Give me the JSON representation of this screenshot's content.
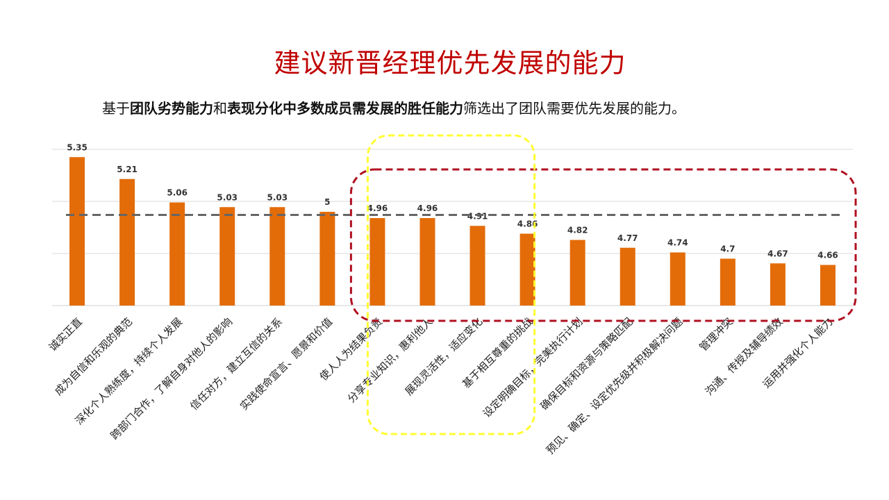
{
  "title": "建议新晋经理优先发展的能力",
  "subtitle": {
    "p1": "基于",
    "p2": "团队劣势能力",
    "p3": "和",
    "p4": "表现分化中多数成员需发展的胜任能力",
    "p5": "筛选出了团队需要优先发展的能力。"
  },
  "colors": {
    "title": "#c00000",
    "bar": "#e36c09",
    "avg_line": "#666666",
    "yellow_box": "#ffff33",
    "red_box": "#b01020"
  },
  "chart_data": {
    "type": "bar",
    "categories": [
      "诚实正直",
      "成为自信和乐观的典范",
      "深化个人熟练度，持续个人发展",
      "跨部门合作，了解自身对他人的影响",
      "信任对方，建立互信的关系",
      "实践使命宣言、愿景和价值",
      "使人人为结果负责",
      "分享专业知识，惠利他人",
      "展现灵活性，适应变化",
      "基于相互尊重的挑战",
      "设定明确目标，完美执行计划",
      "确保目标和资源与策略匹配",
      "预见、确定、设定优先级并积极解决问题",
      "管理冲突",
      "沟通、传授及辅导绩效",
      "运用并强化个人能力"
    ],
    "values": [
      5.35,
      5.21,
      5.06,
      5.03,
      5.03,
      5,
      4.96,
      4.96,
      4.91,
      4.86,
      4.82,
      4.77,
      4.74,
      4.7,
      4.67,
      4.66
    ],
    "value_labels": [
      "5.35",
      "5.21",
      "5.06",
      "5.03",
      "5.03",
      "5",
      "4.96",
      "4.96",
      "4.91",
      "4.86",
      "4.82",
      "4.77",
      "4.74",
      "4.7",
      "4.67",
      "4.66"
    ],
    "reference_line": 4.98,
    "ylim": [
      4.4,
      5.4
    ],
    "grid": true,
    "highlight_yellow": [
      6,
      9
    ],
    "highlight_red": [
      6,
      15
    ]
  }
}
